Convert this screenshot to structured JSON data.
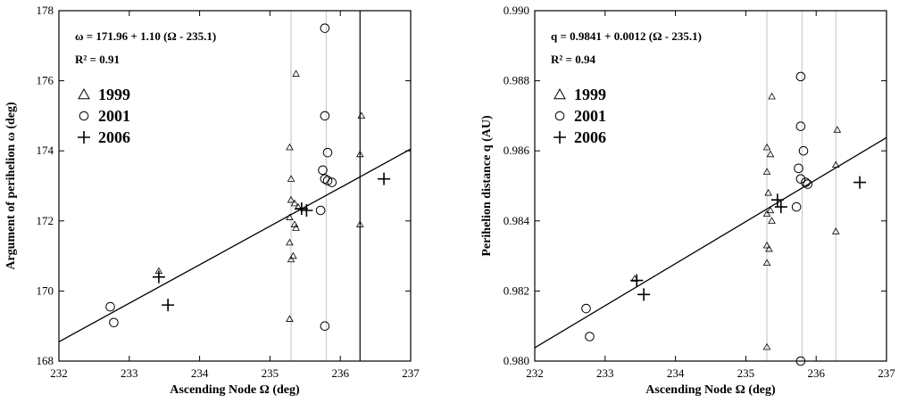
{
  "chart_data": [
    {
      "type": "scatter",
      "xlabel": "Ascending Node Ω (deg)",
      "ylabel": "Argument of perihelion ω (deg)",
      "xlim": [
        232,
        237
      ],
      "ylim": [
        168,
        178
      ],
      "xticks": [
        "232",
        "233",
        "234",
        "235",
        "236",
        "237"
      ],
      "yticks": [
        "168",
        "170",
        "172",
        "174",
        "176",
        "178"
      ],
      "annotations": [
        "ω = 171.96 + 1.10 (Ω - 235.1)",
        "R² = 0.91"
      ],
      "fit": {
        "intercept": 171.96,
        "slope": 1.1,
        "x0": 235.1
      },
      "vlines": [
        {
          "x": 235.3,
          "color": "#cccccc"
        },
        {
          "x": 235.8,
          "color": "#cccccc"
        },
        {
          "x": 236.28,
          "color": "#000000"
        }
      ],
      "series": [
        {
          "name": "1999",
          "marker": "triangle",
          "points": [
            [
              233.42,
              170.57
            ],
            [
              235.28,
              169.2
            ],
            [
              235.28,
              171.38
            ],
            [
              235.3,
              170.9
            ],
            [
              235.33,
              171.0
            ],
            [
              235.3,
              172.6
            ],
            [
              235.3,
              173.2
            ],
            [
              235.28,
              174.1
            ],
            [
              235.37,
              176.2
            ],
            [
              235.35,
              172.5
            ],
            [
              235.35,
              171.9
            ],
            [
              235.37,
              171.8
            ],
            [
              235.4,
              172.4
            ],
            [
              235.28,
              172.1
            ],
            [
              236.28,
              171.9
            ],
            [
              236.28,
              173.9
            ],
            [
              236.3,
              175.0
            ]
          ]
        },
        {
          "name": "2001",
          "marker": "circle",
          "points": [
            [
              232.73,
              169.55
            ],
            [
              232.78,
              169.1
            ],
            [
              235.72,
              172.3
            ],
            [
              235.75,
              173.45
            ],
            [
              235.78,
              173.2
            ],
            [
              235.82,
              173.95
            ],
            [
              235.82,
              173.15
            ],
            [
              235.88,
              173.1
            ],
            [
              235.78,
              175.0
            ],
            [
              235.78,
              177.5
            ],
            [
              235.78,
              169.0
            ]
          ]
        },
        {
          "name": "2006",
          "marker": "plus",
          "points": [
            [
              233.42,
              170.4
            ],
            [
              233.55,
              169.6
            ],
            [
              235.45,
              172.35
            ],
            [
              235.52,
              172.3
            ],
            [
              236.62,
              173.2
            ]
          ]
        }
      ],
      "legend": "upper-left"
    },
    {
      "type": "scatter",
      "xlabel": "Ascending Node Ω (deg)",
      "ylabel": "Perihelion distance q (AU)",
      "xlim": [
        232,
        237
      ],
      "ylim": [
        0.98,
        0.99
      ],
      "xticks": [
        "232",
        "233",
        "234",
        "235",
        "236",
        "237"
      ],
      "yticks": [
        "0.980",
        "0.982",
        "0.984",
        "0.986",
        "0.988",
        "0.990"
      ],
      "annotations": [
        "q = 0.9841 + 0.0012 (Ω - 235.1)",
        "R² = 0.94"
      ],
      "fit": {
        "intercept": 0.9841,
        "slope": 0.0012,
        "x0": 235.1
      },
      "vlines": [
        {
          "x": 235.3,
          "color": "#cccccc"
        },
        {
          "x": 235.8,
          "color": "#cccccc"
        },
        {
          "x": 236.28,
          "color": "#cccccc"
        }
      ],
      "series": [
        {
          "name": "1999",
          "marker": "triangle",
          "points": [
            [
              233.42,
              0.98235
            ],
            [
              235.3,
              0.9804
            ],
            [
              235.3,
              0.9828
            ],
            [
              235.33,
              0.9832
            ],
            [
              235.3,
              0.9833
            ],
            [
              235.3,
              0.9842
            ],
            [
              235.32,
              0.9848
            ],
            [
              235.35,
              0.9843
            ],
            [
              235.37,
              0.984
            ],
            [
              235.3,
              0.9854
            ],
            [
              235.3,
              0.9861
            ],
            [
              235.35,
              0.9859
            ],
            [
              235.37,
              0.98755
            ],
            [
              236.28,
              0.9837
            ],
            [
              236.28,
              0.9856
            ],
            [
              236.3,
              0.9866
            ]
          ]
        },
        {
          "name": "2001",
          "marker": "circle",
          "points": [
            [
              232.73,
              0.9815
            ],
            [
              232.78,
              0.9807
            ],
            [
              235.72,
              0.9844
            ],
            [
              235.75,
              0.9855
            ],
            [
              235.78,
              0.9852
            ],
            [
              235.82,
              0.986
            ],
            [
              235.85,
              0.9851
            ],
            [
              235.88,
              0.98505
            ],
            [
              235.78,
              0.9867
            ],
            [
              235.78,
              0.98812
            ],
            [
              235.78,
              0.98
            ]
          ]
        },
        {
          "name": "2006",
          "marker": "plus",
          "points": [
            [
              233.45,
              0.9823
            ],
            [
              233.55,
              0.9819
            ],
            [
              235.45,
              0.9846
            ],
            [
              235.5,
              0.9844
            ],
            [
              236.62,
              0.9851
            ]
          ]
        }
      ],
      "legend": "upper-left"
    }
  ]
}
